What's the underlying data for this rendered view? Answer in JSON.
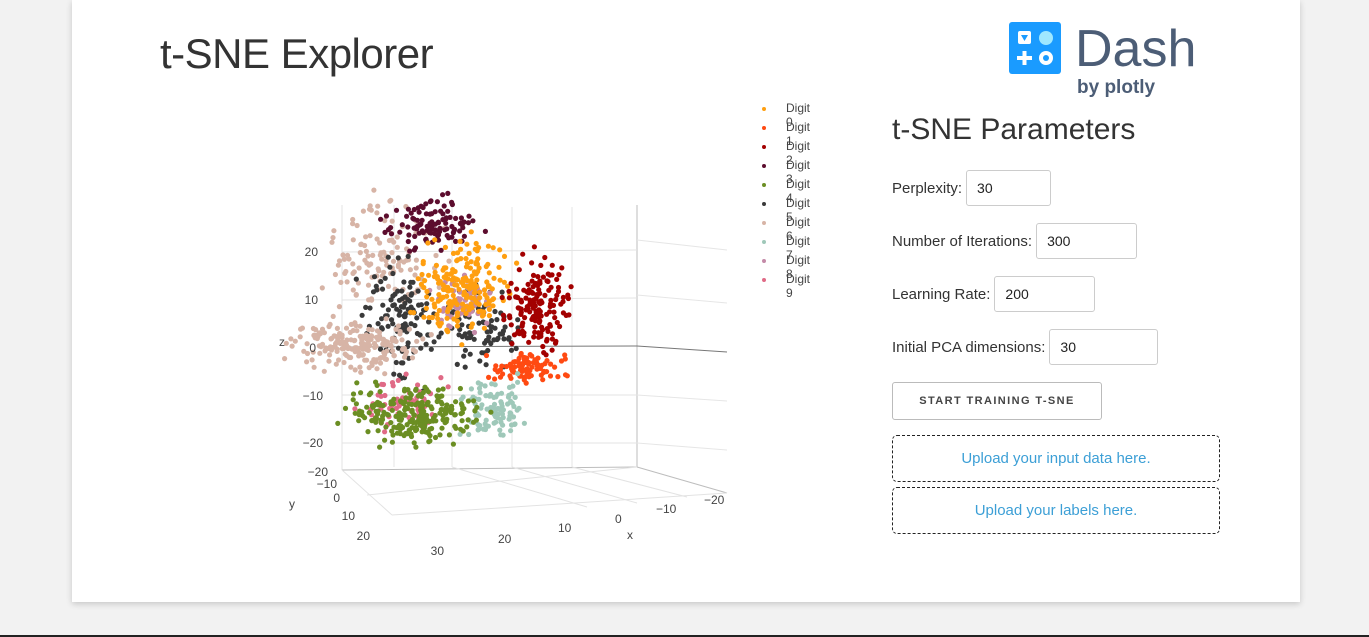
{
  "header": {
    "title": "t-SNE Explorer"
  },
  "logo": {
    "word": "Dash",
    "byline": "by plotly"
  },
  "plot": {
    "axis_titles": {
      "x": "x",
      "y": "y",
      "z": "z"
    },
    "z_ticks": [
      "20",
      "10",
      "0",
      "−10",
      "−20"
    ],
    "y_ticks": [
      "−20",
      "−10",
      "0",
      "10",
      "20",
      "30"
    ],
    "x_ticks": [
      "20",
      "10",
      "0",
      "−10",
      "−20"
    ]
  },
  "legend": [
    {
      "label": "Digit 0",
      "color": "#ff9f10"
    },
    {
      "label": "Digit 1",
      "color": "#ff4a12"
    },
    {
      "label": "Digit 2",
      "color": "#a30000"
    },
    {
      "label": "Digit 3",
      "color": "#5c0d2e"
    },
    {
      "label": "Digit 4",
      "color": "#6b8e23"
    },
    {
      "label": "Digit 5",
      "color": "#3a3a3a"
    },
    {
      "label": "Digit 6",
      "color": "#d7b4a6"
    },
    {
      "label": "Digit 7",
      "color": "#9fc8b9"
    },
    {
      "label": "Digit 8",
      "color": "#c48aa8"
    },
    {
      "label": "Digit 9",
      "color": "#e06a86"
    }
  ],
  "params": {
    "title": "t-SNE Parameters",
    "perplexity": {
      "label": "Perplexity:",
      "value": "30"
    },
    "iterations": {
      "label": "Number of Iterations:",
      "value": "300"
    },
    "learning_rate": {
      "label": "Learning Rate:",
      "value": "200"
    },
    "pca_dims": {
      "label": "Initial PCA dimensions:",
      "value": "30"
    },
    "start_button": "START TRAINING T-SNE",
    "upload_data": "Upload your input data here.",
    "upload_labels": "Upload your labels here."
  }
}
